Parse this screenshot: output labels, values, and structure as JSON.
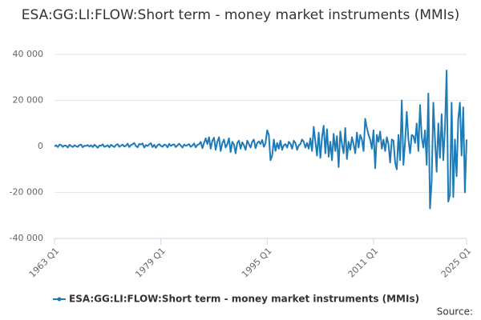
{
  "chart_data": {
    "type": "line",
    "title": "ESA:GG:LI:FLOW:Short term - money market instruments (MMIs)",
    "source": "Source:",
    "categories": [
      "1963 Q1",
      null,
      null,
      null,
      null,
      null,
      null,
      null,
      null,
      null,
      null,
      null,
      null,
      null,
      null,
      null,
      null,
      null,
      null,
      null,
      null,
      null,
      null,
      null,
      null,
      null,
      null,
      null,
      null,
      null,
      null,
      null,
      null,
      null,
      null,
      null,
      null,
      null,
      null,
      null,
      null,
      null,
      null,
      null,
      null,
      null,
      null,
      null,
      null,
      null,
      null,
      null,
      null,
      null,
      null,
      null,
      null,
      null,
      null,
      null,
      null,
      null,
      null,
      null,
      "1979 Q1",
      null,
      null,
      null,
      null,
      null,
      null,
      null,
      null,
      null,
      null,
      null,
      null,
      null,
      null,
      null,
      null,
      null,
      null,
      null,
      null,
      null,
      null,
      null,
      null,
      null,
      null,
      null,
      null,
      null,
      null,
      null,
      null,
      null,
      null,
      null,
      null,
      null,
      null,
      null,
      null,
      null,
      null,
      null,
      null,
      null,
      null,
      null,
      null,
      null,
      null,
      null,
      null,
      null,
      null,
      null,
      null,
      null,
      null,
      null,
      null,
      null,
      null,
      null,
      "1995 Q1",
      null,
      null,
      null,
      null,
      null,
      null,
      null,
      null,
      null,
      null,
      null,
      null,
      null,
      null,
      null,
      null,
      null,
      null,
      null,
      null,
      null,
      null,
      null,
      null,
      null,
      null,
      null,
      null,
      null,
      null,
      null,
      null,
      null,
      null,
      null,
      null,
      null,
      null,
      null,
      null,
      null,
      null,
      null,
      null,
      null,
      null,
      null,
      null,
      null,
      null,
      null,
      null,
      null,
      null,
      null,
      null,
      null,
      null,
      null,
      null,
      null,
      null,
      null,
      "2011 Q1",
      null,
      null,
      null,
      null,
      null,
      null,
      null,
      null,
      null,
      null,
      null,
      null,
      null,
      null,
      null,
      null,
      null,
      null,
      null,
      null,
      null,
      null,
      null,
      null,
      null,
      null,
      null,
      null,
      null,
      null,
      null,
      null,
      null,
      null,
      null,
      null,
      null,
      null,
      null,
      null,
      null,
      null,
      null,
      null,
      null,
      null,
      null,
      null,
      null,
      null,
      null,
      null,
      null,
      null,
      null,
      "2025 Q1"
    ],
    "series": [
      {
        "name": "ESA:GG:LI:FLOW:Short term - money market instruments (MMIs)",
        "color": "#1f7bb6",
        "values": [
          0,
          500,
          -300,
          800,
          600,
          -200,
          400,
          300,
          -500,
          700,
          200,
          -300,
          500,
          100,
          -200,
          600,
          800,
          -400,
          300,
          200,
          600,
          -100,
          500,
          -300,
          700,
          200,
          -600,
          400,
          300,
          900,
          -200,
          100,
          500,
          -400,
          700,
          200,
          -300,
          600,
          1000,
          -200,
          400,
          800,
          -100,
          300,
          1200,
          -300,
          600,
          900,
          1500,
          200,
          -400,
          1100,
          800,
          1300,
          -500,
          600,
          200,
          900,
          1400,
          -300,
          700,
          -600,
          500,
          1000,
          300,
          -200,
          800,
          600,
          -400,
          1100,
          200,
          700,
          900,
          -300,
          500,
          1200,
          400,
          -500,
          800,
          300,
          600,
          1000,
          -200,
          400,
          1300,
          -400,
          700,
          900,
          2000,
          -800,
          1500,
          3500,
          1000,
          4000,
          -1000,
          2500,
          3800,
          -1500,
          2000,
          4000,
          -2000,
          1500,
          3000,
          -500,
          1000,
          3500,
          -2500,
          2000,
          800,
          -3000,
          1500,
          2500,
          -1000,
          1800,
          500,
          -1500,
          2500,
          1000,
          -500,
          2000,
          3000,
          -800,
          1500,
          2200,
          1000,
          2800,
          -200,
          1500,
          7000,
          5000,
          -6000,
          -4000,
          3000,
          -2000,
          1500,
          -1000,
          2500,
          -1500,
          500,
          1000,
          -500,
          2000,
          1200,
          -1000,
          2500,
          1500,
          -1500,
          500,
          1000,
          3000,
          2000,
          -500,
          1500,
          -1000,
          3500,
          -2000,
          8500,
          2000,
          -4000,
          6000,
          -5000,
          4000,
          9000,
          -3000,
          7500,
          -4500,
          2000,
          -6000,
          5500,
          -2000,
          4500,
          -9000,
          6500,
          1000,
          -3000,
          8000,
          -5500,
          2000,
          -1500,
          4000,
          1000,
          -3000,
          6000,
          -500,
          5000,
          3000,
          -2000,
          12000,
          8000,
          5000,
          3000,
          -1000,
          7000,
          -9500,
          5000,
          2000,
          6500,
          -1000,
          3000,
          -2000,
          4000,
          1000,
          -7000,
          3000,
          2500,
          -7000,
          -10000,
          5000,
          -6000,
          20000,
          -8000,
          2000,
          15000,
          3000,
          -3000,
          5000,
          4500,
          1500,
          10000,
          -2000,
          18000,
          4000,
          -500,
          7000,
          -8000,
          23000,
          -27000,
          -15000,
          19000,
          3000,
          -11000,
          10000,
          -5000,
          14000,
          -6000,
          8000,
          33000,
          -24000,
          -21000,
          19000,
          -22000,
          3000,
          -13000,
          12000,
          19000,
          -4000,
          17000,
          -20000,
          3000
        ]
      }
    ],
    "ylim": [
      -40000,
      40000
    ],
    "yticks": [
      {
        "value": -40000,
        "label": "-40 000"
      },
      {
        "value": -20000,
        "label": "-20 000"
      },
      {
        "value": 0,
        "label": "0"
      },
      {
        "value": 20000,
        "label": "20 000"
      },
      {
        "value": 40000,
        "label": "40 000"
      }
    ],
    "grid": true
  }
}
